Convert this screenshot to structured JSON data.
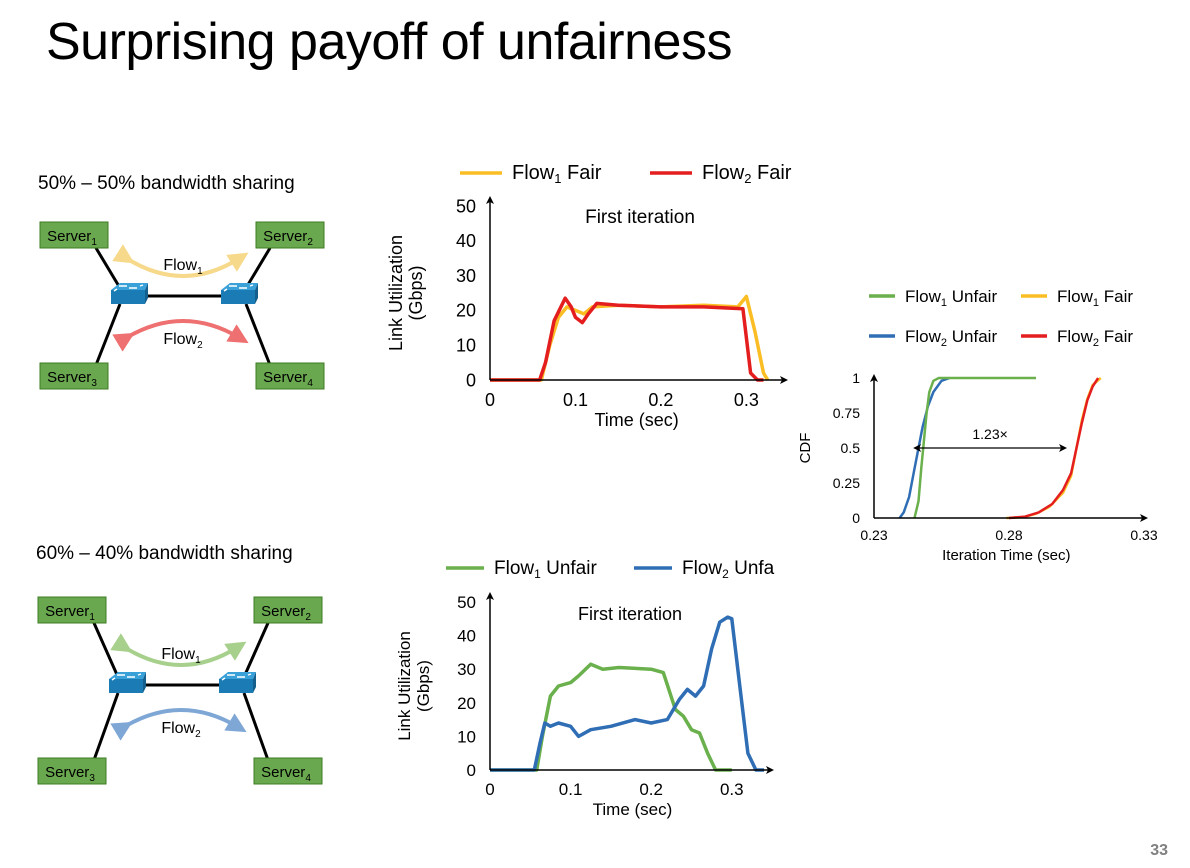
{
  "slide": {
    "title": "Surprising payoff of unfairness",
    "page_number": "33"
  },
  "colors": {
    "server_fill": "#6aa84f",
    "server_border": "#3c7d22",
    "switch_fill": "#3aa0d8",
    "flow1_fair": "#fbbd24",
    "flow2_fair": "#e41e1e",
    "flow1_unfair": "#6ab04c",
    "flow2_unfair": "#2f6eb5",
    "arrow_fair_1": "#f7d98b",
    "arrow_fair_2": "#ee7070",
    "arrow_unfair_1": "#a8d08d",
    "arrow_unfair_2": "#7fa7d6"
  },
  "diagrams": [
    {
      "label": "50% – 50% bandwidth sharing",
      "servers": [
        {
          "name": "Server",
          "sub": "1"
        },
        {
          "name": "Server",
          "sub": "2"
        },
        {
          "name": "Server",
          "sub": "3"
        },
        {
          "name": "Server",
          "sub": "4"
        }
      ],
      "flows": [
        {
          "name": "Flow",
          "sub": "1"
        },
        {
          "name": "Flow",
          "sub": "2"
        }
      ]
    },
    {
      "label": "60% – 40% bandwidth sharing",
      "servers": [
        {
          "name": "Server",
          "sub": "1"
        },
        {
          "name": "Server",
          "sub": "2"
        },
        {
          "name": "Server",
          "sub": "3"
        },
        {
          "name": "Server",
          "sub": "4"
        }
      ],
      "flows": [
        {
          "name": "Flow",
          "sub": "1"
        },
        {
          "name": "Flow",
          "sub": "2"
        }
      ]
    }
  ],
  "chart_data": [
    {
      "type": "line",
      "title": "First iteration",
      "xlabel": "Time (sec)",
      "ylabel_lines": [
        "Link Utilization",
        "(Gbps)"
      ],
      "xlim": [
        0,
        0.33
      ],
      "ylim": [
        0,
        50
      ],
      "xticks": [
        "0",
        "0.1",
        "0.2",
        "0.3"
      ],
      "xtick_values": [
        0,
        0.1,
        0.2,
        0.3
      ],
      "yticks": [
        "0",
        "10",
        "20",
        "30",
        "40",
        "50"
      ],
      "ytick_values": [
        0,
        10,
        20,
        30,
        40,
        50
      ],
      "legend": [
        {
          "name": "Flow",
          "sub": "1",
          "suffix": " Fair",
          "color": "#fbbd24"
        },
        {
          "name": "Flow",
          "sub": "2",
          "suffix": " Fair",
          "color": "#e41e1e"
        }
      ],
      "series": [
        {
          "color": "#fbbd24",
          "points": [
            [
              0,
              0
            ],
            [
              0.06,
              0
            ],
            [
              0.07,
              10
            ],
            [
              0.08,
              18
            ],
            [
              0.09,
              21
            ],
            [
              0.1,
              20
            ],
            [
              0.11,
              19
            ],
            [
              0.12,
              21
            ],
            [
              0.15,
              21.5
            ],
            [
              0.2,
              21
            ],
            [
              0.25,
              21.5
            ],
            [
              0.29,
              21
            ],
            [
              0.3,
              24
            ],
            [
              0.31,
              14
            ],
            [
              0.32,
              2
            ],
            [
              0.325,
              0
            ]
          ]
        },
        {
          "color": "#e41e1e",
          "points": [
            [
              0,
              0
            ],
            [
              0.058,
              0
            ],
            [
              0.065,
              5
            ],
            [
              0.075,
              17
            ],
            [
              0.088,
              23.5
            ],
            [
              0.095,
              21
            ],
            [
              0.1,
              18
            ],
            [
              0.108,
              16.5
            ],
            [
              0.115,
              19
            ],
            [
              0.125,
              22
            ],
            [
              0.15,
              21.5
            ],
            [
              0.2,
              21
            ],
            [
              0.25,
              21
            ],
            [
              0.296,
              20.5
            ],
            [
              0.305,
              2
            ],
            [
              0.313,
              0
            ],
            [
              0.32,
              0
            ]
          ]
        }
      ]
    },
    {
      "type": "line",
      "title": "First iteration",
      "xlabel": "Time (sec)",
      "ylabel_lines": [
        "Link Utilization",
        "(Gbps)"
      ],
      "xlim": [
        0,
        0.34
      ],
      "ylim": [
        0,
        50
      ],
      "xticks": [
        "0",
        "0.1",
        "0.2",
        "0.3"
      ],
      "xtick_values": [
        0,
        0.1,
        0.2,
        0.3
      ],
      "yticks": [
        "0",
        "10",
        "20",
        "30",
        "40",
        "50"
      ],
      "ytick_values": [
        0,
        10,
        20,
        30,
        40,
        50
      ],
      "legend": [
        {
          "name": "Flow",
          "sub": "1",
          "suffix": " Unfair",
          "color": "#6ab04c"
        },
        {
          "name": "Flow",
          "sub": "2",
          "suffix": " Unfa",
          "color": "#2f6eb5"
        }
      ],
      "series": [
        {
          "color": "#6ab04c",
          "points": [
            [
              0,
              0
            ],
            [
              0.058,
              0
            ],
            [
              0.065,
              10
            ],
            [
              0.075,
              22
            ],
            [
              0.085,
              25
            ],
            [
              0.1,
              26
            ],
            [
              0.11,
              28
            ],
            [
              0.125,
              31.5
            ],
            [
              0.14,
              30
            ],
            [
              0.16,
              30.5
            ],
            [
              0.2,
              30
            ],
            [
              0.215,
              29
            ],
            [
              0.23,
              18
            ],
            [
              0.24,
              16
            ],
            [
              0.25,
              12
            ],
            [
              0.26,
              11
            ],
            [
              0.27,
              5
            ],
            [
              0.28,
              0
            ],
            [
              0.3,
              0
            ]
          ]
        },
        {
          "color": "#2f6eb5",
          "points": [
            [
              0,
              0
            ],
            [
              0.055,
              0
            ],
            [
              0.062,
              8
            ],
            [
              0.068,
              14
            ],
            [
              0.075,
              13
            ],
            [
              0.085,
              14
            ],
            [
              0.1,
              13
            ],
            [
              0.11,
              10
            ],
            [
              0.125,
              12
            ],
            [
              0.15,
              13
            ],
            [
              0.18,
              15
            ],
            [
              0.2,
              14
            ],
            [
              0.22,
              15
            ],
            [
              0.235,
              21
            ],
            [
              0.245,
              24
            ],
            [
              0.255,
              22
            ],
            [
              0.265,
              25
            ],
            [
              0.275,
              36
            ],
            [
              0.285,
              44
            ],
            [
              0.295,
              45.5
            ],
            [
              0.3,
              45
            ],
            [
              0.31,
              25
            ],
            [
              0.32,
              5
            ],
            [
              0.33,
              0
            ],
            [
              0.34,
              0
            ]
          ]
        }
      ]
    },
    {
      "type": "line",
      "xlabel": "Iteration Time (sec)",
      "ylabel": "CDF",
      "xlim": [
        0.23,
        0.33
      ],
      "ylim": [
        0,
        1
      ],
      "xticks": [
        "0.23",
        "0.28",
        "0.33"
      ],
      "xtick_values": [
        0.23,
        0.28,
        0.33
      ],
      "yticks": [
        "0",
        "0.25",
        "0.5",
        "0.75",
        "1"
      ],
      "ytick_values": [
        0,
        0.25,
        0.5,
        0.75,
        1
      ],
      "annotation": "1.23×",
      "annotation_span": {
        "x1": 0.2445,
        "x2": 0.3015,
        "y": 0.5
      },
      "legend": [
        {
          "name": "Flow",
          "sub": "1",
          "suffix": " Unfair",
          "color": "#6ab04c"
        },
        {
          "name": "Flow",
          "sub": "1",
          "suffix": " Fair",
          "color": "#fbbd24"
        },
        {
          "name": "Flow",
          "sub": "2",
          "suffix": " Unfair",
          "color": "#2f6eb5"
        },
        {
          "name": "Flow",
          "sub": "2",
          "suffix": " Fair",
          "color": "#e41e1e"
        }
      ],
      "series": [
        {
          "color": "#fbbd24",
          "points": [
            [
              0.279,
              0
            ],
            [
              0.285,
              0.005
            ],
            [
              0.29,
              0.03
            ],
            [
              0.295,
              0.08
            ],
            [
              0.3,
              0.18
            ],
            [
              0.303,
              0.3
            ],
            [
              0.305,
              0.5
            ],
            [
              0.307,
              0.7
            ],
            [
              0.309,
              0.85
            ],
            [
              0.311,
              0.95
            ],
            [
              0.314,
              1
            ]
          ]
        },
        {
          "color": "#e41e1e",
          "points": [
            [
              0.28,
              0
            ],
            [
              0.286,
              0.01
            ],
            [
              0.291,
              0.04
            ],
            [
              0.296,
              0.1
            ],
            [
              0.3,
              0.2
            ],
            [
              0.303,
              0.32
            ],
            [
              0.305,
              0.5
            ],
            [
              0.307,
              0.68
            ],
            [
              0.309,
              0.84
            ],
            [
              0.311,
              0.94
            ],
            [
              0.313,
              1
            ]
          ]
        },
        {
          "color": "#2f6eb5",
          "points": [
            [
              0.2395,
              0
            ],
            [
              0.241,
              0.04
            ],
            [
              0.243,
              0.15
            ],
            [
              0.2445,
              0.3
            ],
            [
              0.2465,
              0.5
            ],
            [
              0.248,
              0.65
            ],
            [
              0.25,
              0.8
            ],
            [
              0.252,
              0.9
            ],
            [
              0.255,
              0.98
            ],
            [
              0.258,
              1
            ]
          ]
        },
        {
          "color": "#6ab04c",
          "points": [
            [
              0.245,
              0
            ],
            [
              0.2465,
              0.12
            ],
            [
              0.2475,
              0.35
            ],
            [
              0.2485,
              0.55
            ],
            [
              0.2495,
              0.75
            ],
            [
              0.2505,
              0.9
            ],
            [
              0.252,
              0.98
            ],
            [
              0.254,
              1
            ],
            [
              0.29,
              1
            ]
          ]
        }
      ]
    }
  ]
}
